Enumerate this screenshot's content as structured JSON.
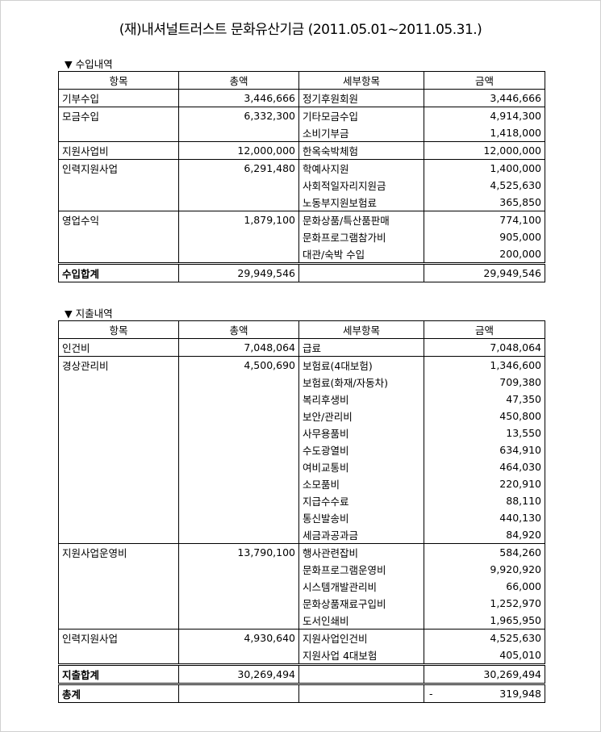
{
  "title": "(재)내셔널트러스트 문화유산기금 (2011.05.01~2011.05.31.)",
  "headers": [
    "항목",
    "총액",
    "세부항목",
    "금액"
  ],
  "income": {
    "label": "▼ 수입내역",
    "groups": [
      {
        "item": "기부수입",
        "total": "3,446,666",
        "marker": false,
        "details": [
          [
            "정기후원회원",
            "3,446,666"
          ]
        ]
      },
      {
        "item": "모금수입",
        "total": "6,332,300",
        "marker": true,
        "details": [
          [
            "기타모금수입",
            "4,914,300"
          ],
          [
            "소비기부금",
            "1,418,000"
          ]
        ]
      },
      {
        "item": "지원사업비",
        "total": "12,000,000",
        "marker": false,
        "details": [
          [
            "한옥숙박체험",
            "12,000,000"
          ]
        ]
      },
      {
        "item": "인력지원사업",
        "total": "6,291,480",
        "marker": true,
        "details": [
          [
            "학예사지원",
            "1,400,000"
          ],
          [
            "사회적일자리지원금",
            "4,525,630"
          ],
          [
            "노동부지원보험료",
            "365,850"
          ]
        ]
      },
      {
        "item": "영업수익",
        "total": "1,879,100",
        "marker": true,
        "details": [
          [
            "문화상품/특산품판매",
            "774,100"
          ],
          [
            "문화프로그램참가비",
            "905,000"
          ],
          [
            "대관/숙박 수입",
            "200,000"
          ]
        ]
      }
    ],
    "total": {
      "label": "수입합계",
      "total": "29,949,546",
      "amount": "29,949,546"
    }
  },
  "expense": {
    "label": "▼ 지출내역",
    "groups": [
      {
        "item": "인건비",
        "total": "7,048,064",
        "marker": false,
        "details": [
          [
            "급료",
            "7,048,064"
          ]
        ]
      },
      {
        "item": "경상관리비",
        "total": "4,500,690",
        "marker": true,
        "details": [
          [
            "보험료(4대보험)",
            "1,346,600"
          ],
          [
            "보험료(화재/자동차)",
            "709,380"
          ],
          [
            "복리후생비",
            "47,350"
          ],
          [
            "보안/관리비",
            "450,800"
          ],
          [
            "사무용품비",
            "13,550"
          ],
          [
            "수도광열비",
            "634,910"
          ],
          [
            "여비교통비",
            "464,030"
          ],
          [
            "소모품비",
            "220,910"
          ],
          [
            "지급수수료",
            "88,110"
          ],
          [
            "통신발송비",
            "440,130"
          ],
          [
            "세금과공과금",
            "84,920"
          ]
        ]
      },
      {
        "item": "지원사업운영비",
        "total": "13,790,100",
        "marker": true,
        "details": [
          [
            "행사관련잡비",
            "584,260"
          ],
          [
            "문화프로그램운영비",
            "9,920,920"
          ],
          [
            "시스템개발관리비",
            "66,000"
          ],
          [
            "문화상품재료구입비",
            "1,252,970"
          ],
          [
            "도서인쇄비",
            "1,965,950"
          ]
        ]
      },
      {
        "item": "인력지원사업",
        "total": "4,930,640",
        "marker": true,
        "details": [
          [
            "지원사업인건비",
            "4,525,630"
          ],
          [
            "지원사업 4대보험",
            "405,010"
          ]
        ]
      }
    ],
    "total": {
      "label": "지출합계",
      "total": "30,269,494",
      "amount": "30,269,494"
    },
    "grand_total": {
      "label": "총계",
      "sign": "-",
      "amount": "319,948"
    }
  },
  "colors": {
    "comment_marker": "#1e7a1e"
  }
}
